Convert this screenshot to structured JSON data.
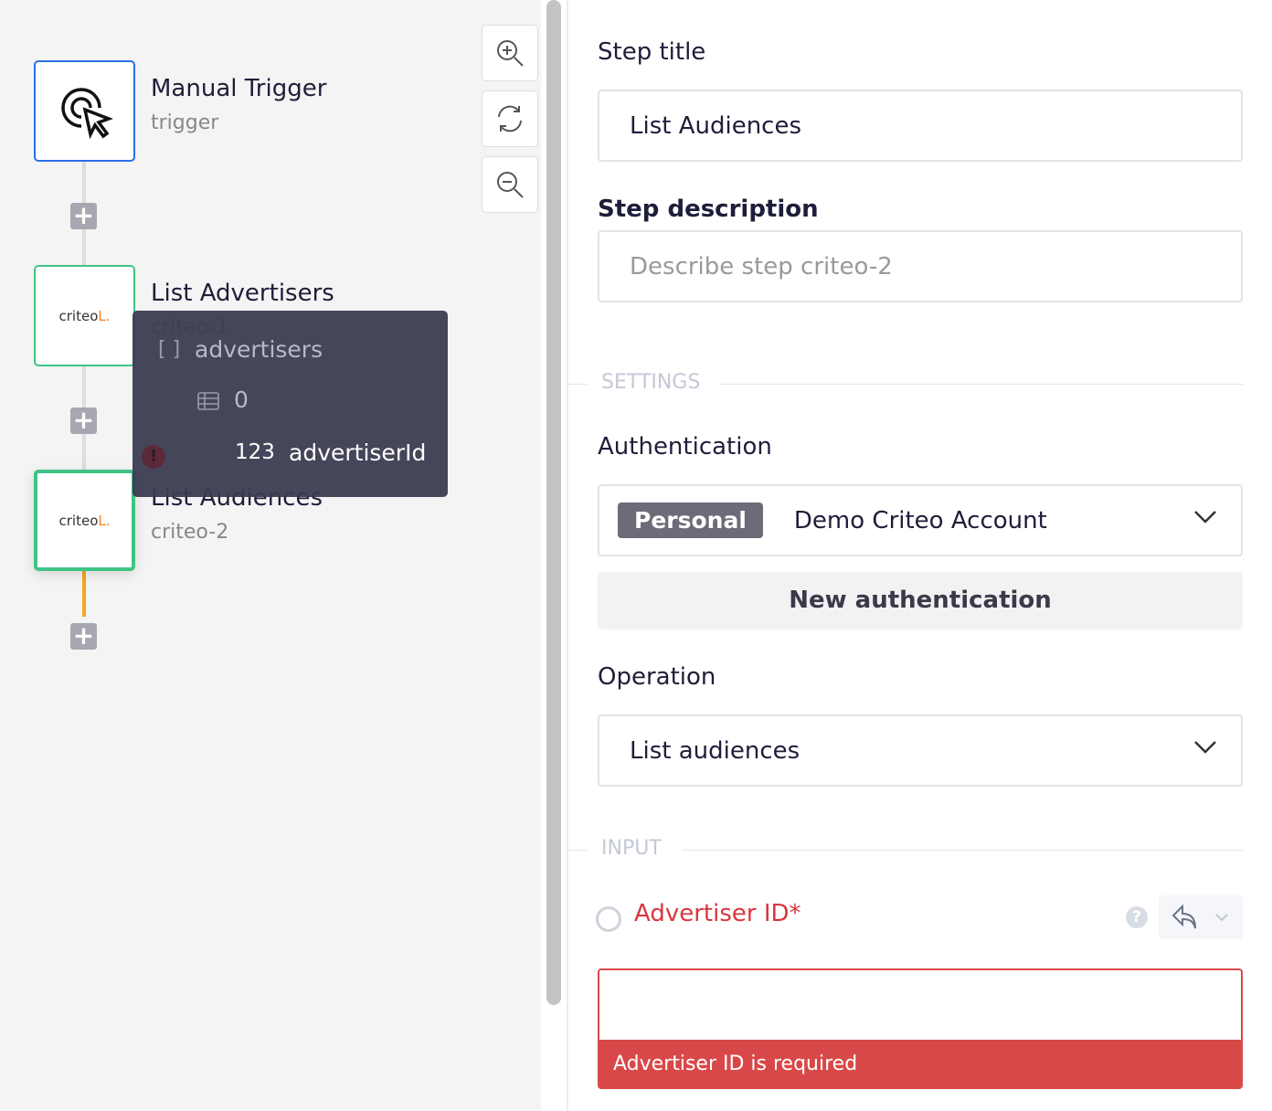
{
  "canvas": {
    "nodes": [
      {
        "title": "Manual Trigger",
        "subtitle": "trigger",
        "icon": "cursor-click-icon"
      },
      {
        "title": "List Advertisers",
        "subtitle": "criteo-1",
        "logo": "criteo"
      },
      {
        "title": "List Audiences",
        "subtitle": "criteo-2",
        "logo": "criteo"
      }
    ],
    "tooltip": {
      "array_icon": "[ ]",
      "array_name": "advertisers",
      "index": "0",
      "type": "123",
      "field": "advertiserId"
    },
    "zoom_controls": [
      "zoom-in",
      "reset",
      "zoom-out"
    ],
    "colors": {
      "trigger_border": "#2b6ee8",
      "step_border": "#3fc486",
      "active_link": "#f5a623"
    }
  },
  "panel": {
    "step_title_label": "Step title",
    "step_title_value": "List Audiences",
    "step_description_label": "Step description",
    "step_description_placeholder": "Describe step criteo-2",
    "settings_header": "SETTINGS",
    "authentication_label": "Authentication",
    "auth_badge": "Personal",
    "auth_value": "Demo Criteo Account",
    "new_auth_button": "New authentication",
    "operation_label": "Operation",
    "operation_value": "List audiences",
    "input_header": "INPUT",
    "advertiser_label": "Advertiser ID*",
    "advertiser_value": "",
    "advertiser_error": "Advertiser ID is required",
    "error_color": "#d94848"
  }
}
